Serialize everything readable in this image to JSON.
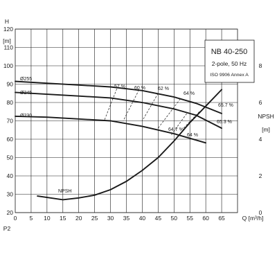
{
  "chart_data": {
    "type": "line",
    "title": "NB 40-250",
    "subtitle_lines": [
      "2-pole, 50 Hz",
      "ISO 9906 Annex A"
    ],
    "x_axis": {
      "label": "Q [m³/h]",
      "range": [
        0,
        70
      ],
      "ticks": [
        0,
        5,
        10,
        15,
        20,
        25,
        30,
        35,
        40,
        45,
        50,
        55,
        60,
        65
      ]
    },
    "y_axis_left": {
      "label": "H",
      "unit": "[m]",
      "range": [
        20,
        120
      ],
      "ticks": [
        20,
        30,
        40,
        50,
        60,
        70,
        80,
        90,
        100,
        110,
        120
      ]
    },
    "y_axis_right": {
      "label": "NPSH",
      "unit": "[m]",
      "range": [
        0,
        10
      ],
      "ticks": [
        0,
        2,
        4,
        6,
        8,
        10
      ]
    },
    "bottom_left_label": "P2",
    "series": [
      {
        "name": "Ø255",
        "axis": "left",
        "points": [
          [
            0,
            91.5
          ],
          [
            10,
            90.5
          ],
          [
            20,
            89.5
          ],
          [
            30,
            88.5
          ],
          [
            40,
            86.5
          ],
          [
            50,
            83
          ],
          [
            57,
            79.5
          ],
          [
            65,
            74
          ]
        ]
      },
      {
        "name": "Ø245",
        "axis": "left",
        "points": [
          [
            0,
            85.5
          ],
          [
            10,
            84.5
          ],
          [
            20,
            83.5
          ],
          [
            30,
            82.5
          ],
          [
            40,
            80
          ],
          [
            50,
            76.5
          ],
          [
            57,
            73
          ],
          [
            65,
            66
          ]
        ]
      },
      {
        "name": "Ø230",
        "axis": "left",
        "points": [
          [
            0,
            72.5
          ],
          [
            10,
            72
          ],
          [
            20,
            71
          ],
          [
            30,
            70
          ],
          [
            40,
            67
          ],
          [
            50,
            63
          ],
          [
            60,
            58
          ]
        ]
      },
      {
        "name": "NPSH",
        "axis": "right",
        "points": [
          [
            7,
            0.9
          ],
          [
            15,
            0.7
          ],
          [
            20,
            0.8
          ],
          [
            25,
            0.95
          ],
          [
            30,
            1.25
          ],
          [
            35,
            1.7
          ],
          [
            40,
            2.3
          ],
          [
            45,
            3.0
          ],
          [
            50,
            3.9
          ],
          [
            55,
            4.9
          ],
          [
            60,
            5.8
          ],
          [
            65,
            6.7
          ]
        ]
      }
    ],
    "efficiency_labels": [
      "57 %",
      "60 %",
      "62 %",
      "64 %",
      "65.7 %",
      "65.3 %",
      "64.7 %",
      "64 %"
    ],
    "efficiency_lines": [
      {
        "label": "57 %",
        "points": [
          [
            32,
            87.5
          ],
          [
            28,
            70
          ]
        ]
      },
      {
        "label": "60 %",
        "points": [
          [
            39,
            87
          ],
          [
            34,
            70
          ]
        ]
      },
      {
        "label": "62 %",
        "points": [
          [
            45,
            85
          ],
          [
            40,
            70
          ]
        ]
      },
      {
        "label": "64 %",
        "points": [
          [
            52,
            82
          ],
          [
            45,
            66
          ]
        ]
      },
      {
        "label": "64 %",
        "points": [
          [
            54,
            74
          ],
          [
            49,
            62
          ]
        ]
      },
      {
        "label": "64.7 %",
        "points": [
          [
            58,
            75
          ],
          [
            53,
            66
          ]
        ]
      }
    ],
    "grid": true
  }
}
